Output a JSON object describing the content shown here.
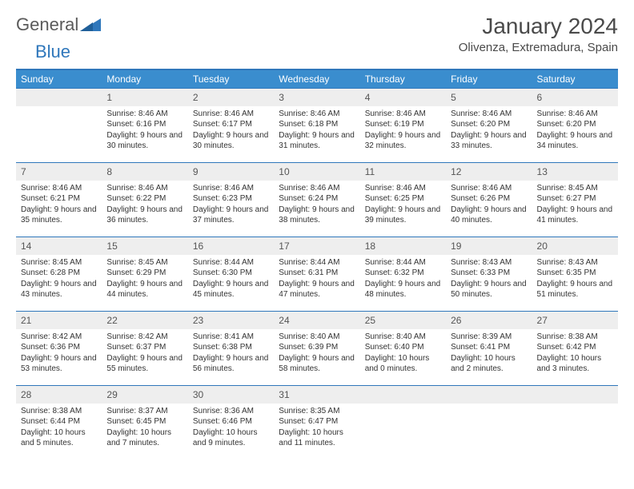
{
  "logo": {
    "text1": "General",
    "text2": "Blue",
    "triangle_color": "#2f77bb"
  },
  "title": "January 2024",
  "location": "Olivenza, Extremadura, Spain",
  "colors": {
    "header_bg": "#3a8dce",
    "border": "#2f77bb",
    "daynum_bg": "#eeeeee",
    "text": "#333333"
  },
  "weekdays": [
    "Sunday",
    "Monday",
    "Tuesday",
    "Wednesday",
    "Thursday",
    "Friday",
    "Saturday"
  ],
  "weeks": [
    [
      null,
      {
        "n": "1",
        "sr": "8:46 AM",
        "ss": "6:16 PM",
        "dl": "9 hours and 30 minutes."
      },
      {
        "n": "2",
        "sr": "8:46 AM",
        "ss": "6:17 PM",
        "dl": "9 hours and 30 minutes."
      },
      {
        "n": "3",
        "sr": "8:46 AM",
        "ss": "6:18 PM",
        "dl": "9 hours and 31 minutes."
      },
      {
        "n": "4",
        "sr": "8:46 AM",
        "ss": "6:19 PM",
        "dl": "9 hours and 32 minutes."
      },
      {
        "n": "5",
        "sr": "8:46 AM",
        "ss": "6:20 PM",
        "dl": "9 hours and 33 minutes."
      },
      {
        "n": "6",
        "sr": "8:46 AM",
        "ss": "6:20 PM",
        "dl": "9 hours and 34 minutes."
      }
    ],
    [
      {
        "n": "7",
        "sr": "8:46 AM",
        "ss": "6:21 PM",
        "dl": "9 hours and 35 minutes."
      },
      {
        "n": "8",
        "sr": "8:46 AM",
        "ss": "6:22 PM",
        "dl": "9 hours and 36 minutes."
      },
      {
        "n": "9",
        "sr": "8:46 AM",
        "ss": "6:23 PM",
        "dl": "9 hours and 37 minutes."
      },
      {
        "n": "10",
        "sr": "8:46 AM",
        "ss": "6:24 PM",
        "dl": "9 hours and 38 minutes."
      },
      {
        "n": "11",
        "sr": "8:46 AM",
        "ss": "6:25 PM",
        "dl": "9 hours and 39 minutes."
      },
      {
        "n": "12",
        "sr": "8:46 AM",
        "ss": "6:26 PM",
        "dl": "9 hours and 40 minutes."
      },
      {
        "n": "13",
        "sr": "8:45 AM",
        "ss": "6:27 PM",
        "dl": "9 hours and 41 minutes."
      }
    ],
    [
      {
        "n": "14",
        "sr": "8:45 AM",
        "ss": "6:28 PM",
        "dl": "9 hours and 43 minutes."
      },
      {
        "n": "15",
        "sr": "8:45 AM",
        "ss": "6:29 PM",
        "dl": "9 hours and 44 minutes."
      },
      {
        "n": "16",
        "sr": "8:44 AM",
        "ss": "6:30 PM",
        "dl": "9 hours and 45 minutes."
      },
      {
        "n": "17",
        "sr": "8:44 AM",
        "ss": "6:31 PM",
        "dl": "9 hours and 47 minutes."
      },
      {
        "n": "18",
        "sr": "8:44 AM",
        "ss": "6:32 PM",
        "dl": "9 hours and 48 minutes."
      },
      {
        "n": "19",
        "sr": "8:43 AM",
        "ss": "6:33 PM",
        "dl": "9 hours and 50 minutes."
      },
      {
        "n": "20",
        "sr": "8:43 AM",
        "ss": "6:35 PM",
        "dl": "9 hours and 51 minutes."
      }
    ],
    [
      {
        "n": "21",
        "sr": "8:42 AM",
        "ss": "6:36 PM",
        "dl": "9 hours and 53 minutes."
      },
      {
        "n": "22",
        "sr": "8:42 AM",
        "ss": "6:37 PM",
        "dl": "9 hours and 55 minutes."
      },
      {
        "n": "23",
        "sr": "8:41 AM",
        "ss": "6:38 PM",
        "dl": "9 hours and 56 minutes."
      },
      {
        "n": "24",
        "sr": "8:40 AM",
        "ss": "6:39 PM",
        "dl": "9 hours and 58 minutes."
      },
      {
        "n": "25",
        "sr": "8:40 AM",
        "ss": "6:40 PM",
        "dl": "10 hours and 0 minutes."
      },
      {
        "n": "26",
        "sr": "8:39 AM",
        "ss": "6:41 PM",
        "dl": "10 hours and 2 minutes."
      },
      {
        "n": "27",
        "sr": "8:38 AM",
        "ss": "6:42 PM",
        "dl": "10 hours and 3 minutes."
      }
    ],
    [
      {
        "n": "28",
        "sr": "8:38 AM",
        "ss": "6:44 PM",
        "dl": "10 hours and 5 minutes."
      },
      {
        "n": "29",
        "sr": "8:37 AM",
        "ss": "6:45 PM",
        "dl": "10 hours and 7 minutes."
      },
      {
        "n": "30",
        "sr": "8:36 AM",
        "ss": "6:46 PM",
        "dl": "10 hours and 9 minutes."
      },
      {
        "n": "31",
        "sr": "8:35 AM",
        "ss": "6:47 PM",
        "dl": "10 hours and 11 minutes."
      },
      null,
      null,
      null
    ]
  ],
  "labels": {
    "sunrise": "Sunrise:",
    "sunset": "Sunset:",
    "daylight": "Daylight:"
  }
}
